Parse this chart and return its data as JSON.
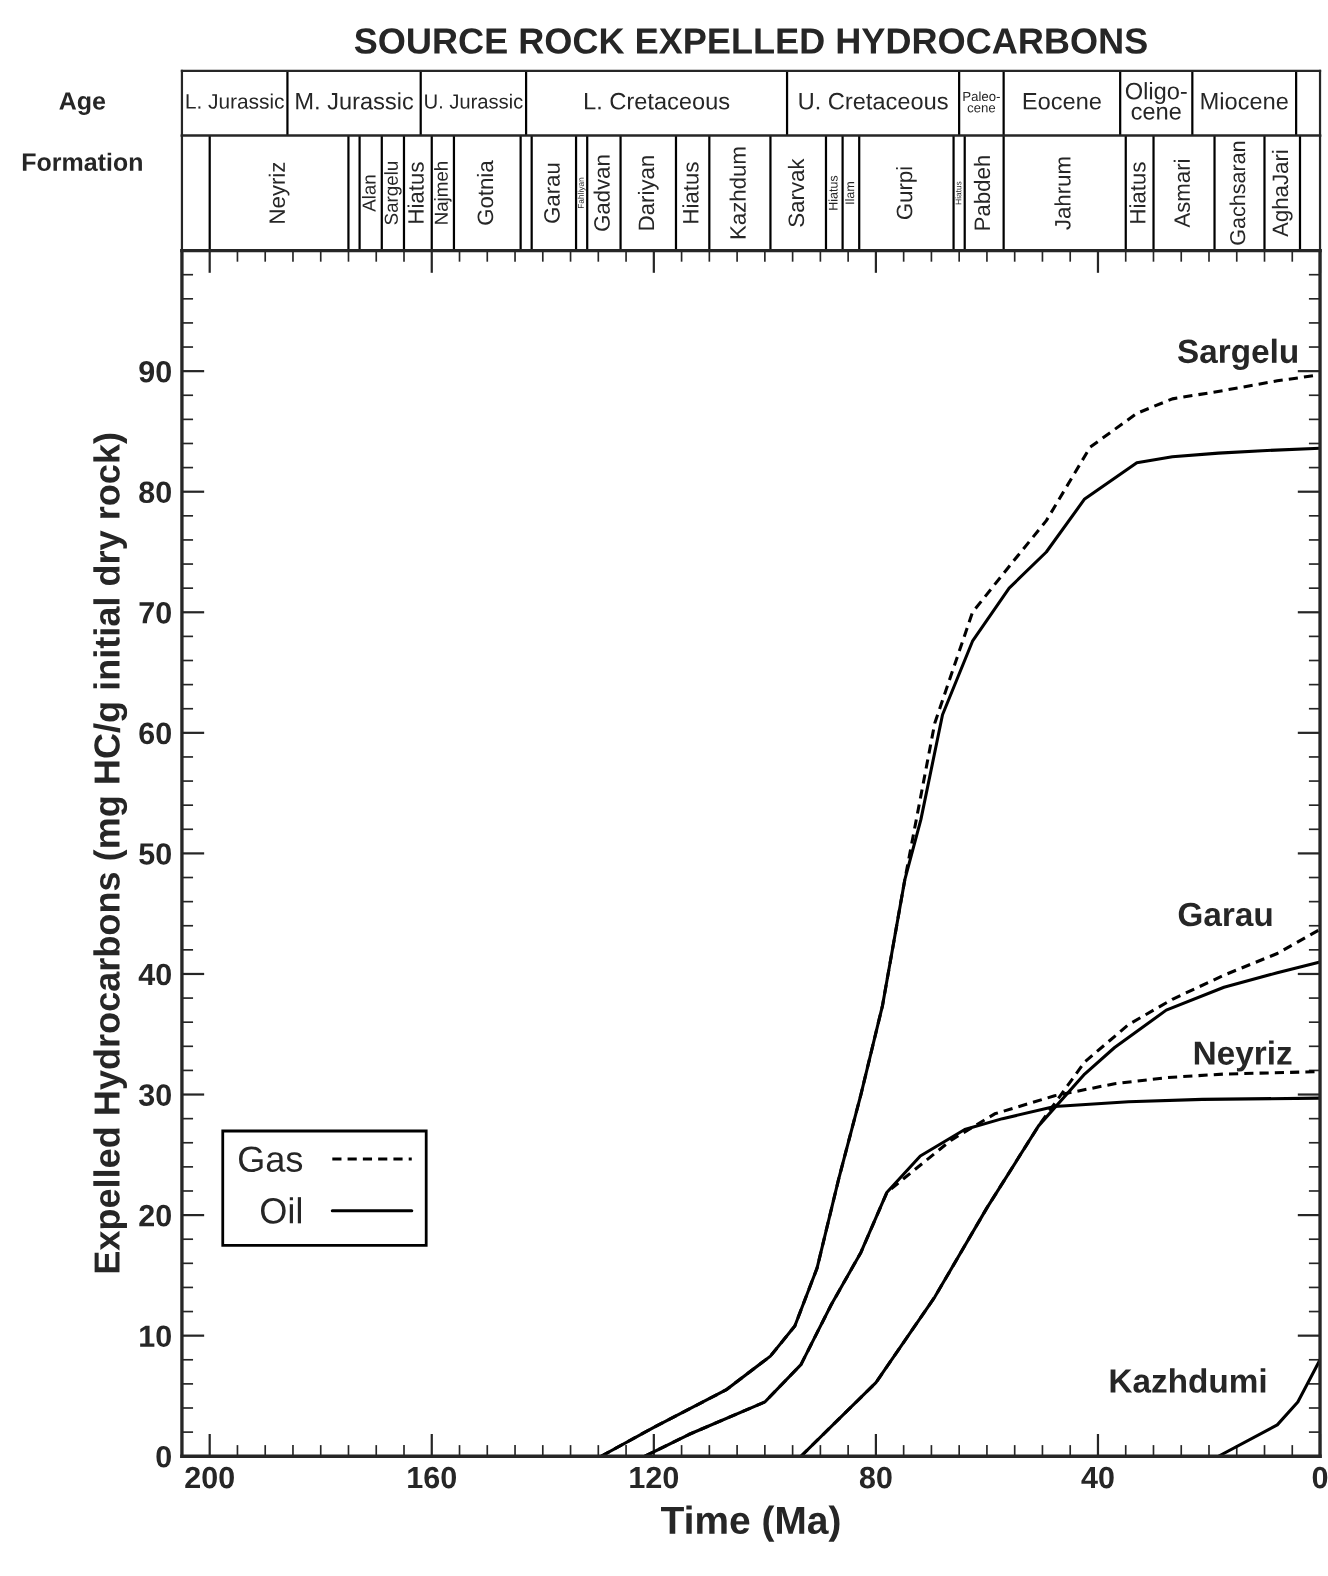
{
  "chart_data": [
    {
      "type": "other",
      "title": "SOURCE ROCK EXPELLED HYDROCARBONS",
      "y_categories": [
        "Age",
        "Formation"
      ],
      "annotations": [
        "L. Jurassic",
        "M. Jurassic",
        "U. Jurassic",
        "L. Cretaceous",
        "U. Cretaceous",
        "Paleo-\ncene",
        "Eocene",
        "Oligo-\ncene",
        "Miocene"
      ],
      "categories": [
        null,
        "Neyriz",
        null,
        "Alan",
        "Sargelu",
        "Hiatus",
        "Najmeh",
        "Gotnia",
        null,
        "Garau",
        "Fahliyan",
        "Gadvan",
        "Dariyan",
        "Hiatus",
        "Kazhdum",
        "Sarvak",
        "Hiatus",
        "Ilam",
        "Gurpi",
        "Hiatus",
        "Pabdeh",
        "Jahrum",
        "Hiatus",
        "Asmari",
        "Gachsaran",
        "AghaJari",
        null
      ]
    },
    {
      "type": "line",
      "xlabel": "Time (Ma)",
      "ylabel": "Expelled Hydrocarbons (mg HC/g initial dry rock)",
      "xlim": [
        205,
        0
      ],
      "ylim": [
        0,
        100
      ],
      "xticks": [
        0,
        {
          "value": 5,
          "label": null
        },
        {
          "value": 10,
          "label": null
        },
        {
          "value": 15,
          "label": null
        },
        {
          "value": 20,
          "label": null
        },
        {
          "value": 25,
          "label": null
        },
        {
          "value": 30,
          "label": null
        },
        {
          "value": 35,
          "label": null
        },
        40,
        {
          "value": 45,
          "label": null
        },
        {
          "value": 50,
          "label": null
        },
        {
          "value": 55,
          "label": null
        },
        {
          "value": 60,
          "label": null
        },
        {
          "value": 65,
          "label": null
        },
        {
          "value": 70,
          "label": null
        },
        {
          "value": 75,
          "label": null
        },
        80,
        {
          "value": 85,
          "label": null
        },
        {
          "value": 90,
          "label": null
        },
        {
          "value": 95,
          "label": null
        },
        {
          "value": 100,
          "label": null
        },
        {
          "value": 105,
          "label": null
        },
        {
          "value": 110,
          "label": null
        },
        {
          "value": 115,
          "label": null
        },
        120,
        {
          "value": 125,
          "label": null
        },
        {
          "value": 130,
          "label": null
        },
        {
          "value": 135,
          "label": null
        },
        {
          "value": 140,
          "label": null
        },
        {
          "value": 145,
          "label": null
        },
        {
          "value": 150,
          "label": null
        },
        {
          "value": 155,
          "label": null
        },
        160,
        {
          "value": 165,
          "label": null
        },
        {
          "value": 170,
          "label": null
        },
        {
          "value": 175,
          "label": null
        },
        {
          "value": 180,
          "label": null
        },
        {
          "value": 185,
          "label": null
        },
        {
          "value": 190,
          "label": null
        },
        {
          "value": 195,
          "label": null
        },
        200
      ],
      "yticks": [
        0,
        {
          "value": 2,
          "label": null
        },
        {
          "value": 4,
          "label": null
        },
        {
          "value": 6,
          "label": null
        },
        {
          "value": 8,
          "label": null
        },
        10,
        {
          "value": 12,
          "label": null
        },
        {
          "value": 14,
          "label": null
        },
        {
          "value": 16,
          "label": null
        },
        {
          "value": 18,
          "label": null
        },
        20,
        {
          "value": 22,
          "label": null
        },
        {
          "value": 24,
          "label": null
        },
        {
          "value": 26,
          "label": null
        },
        {
          "value": 28,
          "label": null
        },
        30,
        {
          "value": 32,
          "label": null
        },
        {
          "value": 34,
          "label": null
        },
        {
          "value": 36,
          "label": null
        },
        {
          "value": 38,
          "label": null
        },
        40,
        {
          "value": 42,
          "label": null
        },
        {
          "value": 44,
          "label": null
        },
        {
          "value": 46,
          "label": null
        },
        {
          "value": 48,
          "label": null
        },
        50,
        {
          "value": 52,
          "label": null
        },
        {
          "value": 54,
          "label": null
        },
        {
          "value": 56,
          "label": null
        },
        {
          "value": 58,
          "label": null
        },
        60,
        {
          "value": 62,
          "label": null
        },
        {
          "value": 64,
          "label": null
        },
        {
          "value": 66,
          "label": null
        },
        {
          "value": 68,
          "label": null
        },
        70,
        {
          "value": 72,
          "label": null
        },
        {
          "value": 74,
          "label": null
        },
        {
          "value": 76,
          "label": null
        },
        {
          "value": 78,
          "label": null
        },
        80,
        {
          "value": 82,
          "label": null
        },
        {
          "value": 84,
          "label": null
        },
        {
          "value": 86,
          "label": null
        },
        {
          "value": 88,
          "label": null
        },
        90,
        {
          "value": 92,
          "label": null
        },
        {
          "value": 94,
          "label": null
        },
        {
          "value": 96,
          "label": null
        },
        {
          "value": 98,
          "label": null
        }
      ],
      "grid": false,
      "legend": "bottom left",
      "series": [
        {
          "name": "Gas",
          "color": "#000000",
          "line_style": "dashed",
          "x": [
            129.5,
            120,
            107,
            99,
            94.6,
            90.6,
            86.7,
            82.7,
            78.8,
            74.8,
            69.4,
            62.6,
            56,
            49.3,
            41.4,
            33,
            26.6,
            17.3,
            7.7,
            0
          ],
          "values": [
            0,
            2.4,
            5.5,
            8.3,
            10.8,
            15.6,
            23,
            30,
            37.4,
            47.8,
            60.8,
            70,
            73.8,
            77.6,
            83.7,
            86.5,
            87.7,
            88.4,
            89.2,
            89.7
          ]
        },
        {
          "name": "Oil",
          "color": "#000000",
          "line_style": "solid",
          "x": [
            129.5,
            120,
            107,
            99,
            94.6,
            90.6,
            86.7,
            82.7,
            78.8,
            74.8,
            71.9,
            68,
            62.6,
            56,
            49.3,
            42.4,
            33,
            26.6,
            18.3,
            10.4,
            0
          ],
          "values": [
            0,
            2.4,
            5.5,
            8.3,
            10.8,
            15.6,
            23,
            30,
            37.4,
            47.8,
            52.8,
            61.5,
            67.6,
            72,
            75,
            79.4,
            82.4,
            82.9,
            83.2,
            83.4,
            83.6
          ]
        },
        {
          "color": "#000000",
          "line_style": "dashed",
          "x": [
            121.6,
            113.7,
            100,
            93.5,
            88,
            82.7,
            78,
            74.8,
            66.5,
            58.6,
            47.8,
            37,
            27.7,
            17.3,
            0
          ],
          "values": [
            0,
            1.8,
            4.5,
            7.6,
            12.6,
            16.9,
            21.9,
            23.1,
            26.2,
            28.4,
            29.9,
            30.9,
            31.4,
            31.7,
            31.9
          ]
        },
        {
          "color": "#000000",
          "line_style": "solid",
          "x": [
            121.6,
            113.7,
            100,
            93.5,
            88,
            82.7,
            78,
            72,
            64,
            57.2,
            47.8,
            34.5,
            21.2,
            0
          ],
          "values": [
            0,
            1.8,
            4.5,
            7.6,
            12.6,
            16.9,
            21.9,
            24.9,
            27.1,
            28,
            29,
            29.4,
            29.6,
            29.7
          ]
        },
        {
          "color": "#000000",
          "line_style": "dashed",
          "x": [
            93.5,
            80,
            69.4,
            60,
            50.7,
            42.4,
            34.5,
            26.6,
            17.3,
            7.7,
            0
          ],
          "values": [
            0,
            6.1,
            13.2,
            20.6,
            27.4,
            32.7,
            35.8,
            37.9,
            39.9,
            41.7,
            43.7
          ]
        },
        {
          "color": "#000000",
          "line_style": "solid",
          "x": [
            93.5,
            80,
            69.4,
            60,
            50.7,
            42.4,
            37,
            27.7,
            17.3,
            7.7,
            0
          ],
          "values": [
            0,
            6.1,
            13.2,
            20.6,
            27.4,
            31.7,
            33.9,
            37,
            38.9,
            40.1,
            41
          ]
        },
        {
          "color": "#000000",
          "line_style": "solid",
          "x": [
            18.3,
            7.7,
            4,
            0
          ],
          "values": [
            0,
            2.6,
            4.5,
            8
          ]
        }
      ],
      "annotations": [
        "Sargelu",
        "Garau",
        "Neyriz",
        "Kazhdumi"
      ]
    }
  ]
}
